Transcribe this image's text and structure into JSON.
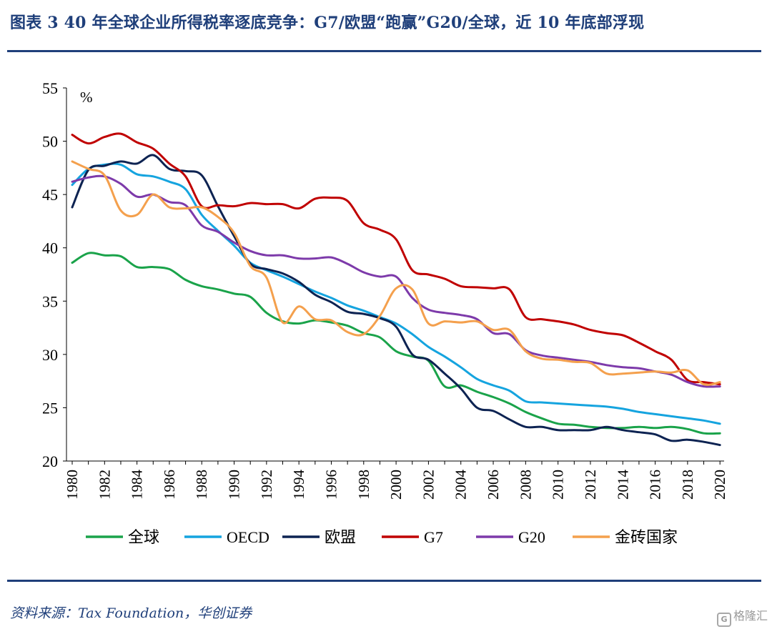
{
  "header": {
    "title": "图表 3 40 年全球企业所得税率逐底竞争：G7/欧盟“跑赢”G20/全球，近 10 年底部浮现"
  },
  "footer": {
    "source": "资料来源：Tax Foundation，华创证券",
    "watermark": "格隆汇"
  },
  "chart_data": {
    "type": "line",
    "unit_label": "%",
    "ylim": [
      20,
      55
    ],
    "yticks": [
      20,
      25,
      30,
      35,
      40,
      45,
      50,
      55
    ],
    "xlim": [
      1980,
      2020
    ],
    "xticks": [
      1980,
      1982,
      1984,
      1986,
      1988,
      1990,
      1992,
      1994,
      1996,
      1998,
      2000,
      2002,
      2004,
      2006,
      2008,
      2010,
      2012,
      2014,
      2016,
      2018,
      2020
    ],
    "grid": false,
    "legend_position": "bottom",
    "x": [
      1980,
      1981,
      1982,
      1983,
      1984,
      1985,
      1986,
      1987,
      1988,
      1989,
      1990,
      1991,
      1992,
      1993,
      1994,
      1995,
      1996,
      1997,
      1998,
      1999,
      2000,
      2001,
      2002,
      2003,
      2004,
      2005,
      2006,
      2007,
      2008,
      2009,
      2010,
      2011,
      2012,
      2013,
      2014,
      2015,
      2016,
      2017,
      2018,
      2019,
      2020
    ],
    "series": [
      {
        "name": "全球",
        "color": "#1aa34a",
        "values": [
          38.6,
          39.5,
          39.3,
          39.2,
          38.2,
          38.2,
          38.0,
          37.0,
          36.4,
          36.1,
          35.7,
          35.4,
          33.9,
          33.1,
          32.9,
          33.2,
          33.0,
          32.7,
          32.0,
          31.6,
          30.3,
          29.8,
          29.4,
          27.0,
          27.1,
          26.5,
          26.0,
          25.4,
          24.6,
          24.0,
          23.5,
          23.4,
          23.2,
          23.1,
          23.1,
          23.2,
          23.1,
          23.2,
          23.0,
          22.6,
          22.6
        ]
      },
      {
        "name": "OECD",
        "color": "#15a4df",
        "values": [
          45.9,
          47.4,
          47.8,
          47.8,
          46.9,
          46.7,
          46.2,
          45.5,
          43.1,
          41.6,
          40.2,
          38.6,
          37.9,
          37.3,
          36.6,
          35.9,
          35.3,
          34.6,
          34.1,
          33.5,
          32.9,
          31.9,
          30.7,
          29.8,
          28.8,
          27.7,
          27.1,
          26.6,
          25.6,
          25.5,
          25.4,
          25.3,
          25.2,
          25.1,
          24.9,
          24.6,
          24.4,
          24.2,
          24.0,
          23.8,
          23.5
        ]
      },
      {
        "name": "欧盟",
        "color": "#0d2352",
        "values": [
          43.8,
          47.3,
          47.7,
          48.1,
          47.9,
          48.7,
          47.4,
          47.2,
          46.8,
          43.9,
          41.1,
          38.5,
          38.0,
          37.6,
          36.8,
          35.6,
          34.9,
          34.0,
          33.8,
          33.4,
          32.6,
          30.0,
          29.5,
          28.2,
          26.8,
          25.0,
          24.7,
          23.9,
          23.2,
          23.2,
          22.9,
          22.9,
          22.9,
          23.2,
          22.9,
          22.7,
          22.5,
          21.9,
          22.0,
          21.8,
          21.5
        ]
      },
      {
        "name": "G7",
        "color": "#c00000",
        "values": [
          50.6,
          49.8,
          50.4,
          50.7,
          49.9,
          49.3,
          47.9,
          46.7,
          43.9,
          44.0,
          43.9,
          44.2,
          44.1,
          44.1,
          43.7,
          44.6,
          44.7,
          44.4,
          42.3,
          41.7,
          40.8,
          37.9,
          37.5,
          37.1,
          36.4,
          36.3,
          36.2,
          36.1,
          33.5,
          33.3,
          33.1,
          32.8,
          32.3,
          32.0,
          31.8,
          31.1,
          30.3,
          29.5,
          27.6,
          27.4,
          27.2
        ]
      },
      {
        "name": "G20",
        "color": "#7d3aaa",
        "values": [
          46.2,
          46.6,
          46.7,
          46.0,
          44.8,
          45.0,
          44.3,
          44.0,
          42.1,
          41.5,
          40.5,
          39.7,
          39.3,
          39.3,
          39.0,
          39.0,
          39.1,
          38.5,
          37.7,
          37.3,
          37.3,
          35.3,
          34.2,
          33.9,
          33.7,
          33.3,
          32.0,
          31.9,
          30.4,
          29.9,
          29.7,
          29.5,
          29.3,
          29.0,
          28.8,
          28.7,
          28.4,
          28.1,
          27.4,
          27.0,
          27.0
        ]
      },
      {
        "name": "金砖国家",
        "color": "#f4a04d",
        "values": [
          48.1,
          47.4,
          46.8,
          43.5,
          43.1,
          45.0,
          43.8,
          43.7,
          43.8,
          42.9,
          41.4,
          38.3,
          37.2,
          33.0,
          34.5,
          33.3,
          33.2,
          32.1,
          31.9,
          33.6,
          36.2,
          36.1,
          32.9,
          33.1,
          33.0,
          33.1,
          32.3,
          32.3,
          30.3,
          29.6,
          29.5,
          29.3,
          29.2,
          28.2,
          28.2,
          28.3,
          28.4,
          28.3,
          28.5,
          27.2,
          27.4
        ]
      }
    ]
  }
}
